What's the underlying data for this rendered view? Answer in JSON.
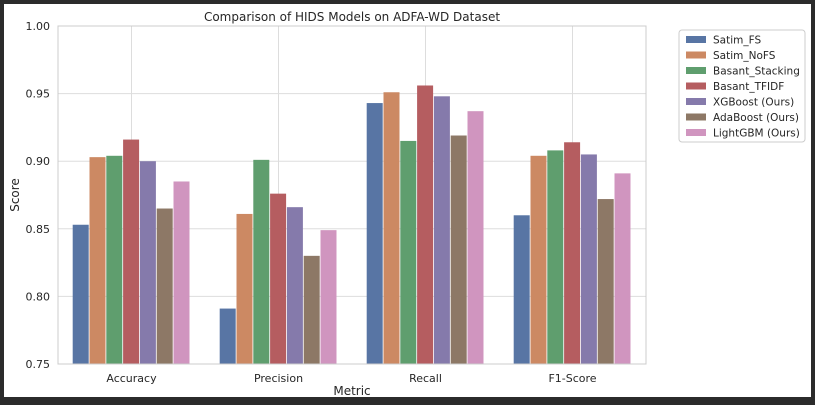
{
  "chart_data": {
    "type": "bar",
    "title": "Comparison of HIDS Models on ADFA-WD Dataset",
    "xlabel": "Metric",
    "ylabel": "Score",
    "ylim": [
      0.75,
      1.0
    ],
    "yticks": [
      "0.75",
      "0.80",
      "0.85",
      "0.90",
      "0.95",
      "1.00"
    ],
    "grid": true,
    "legend_position": "outside-right",
    "categories": [
      "Accuracy",
      "Precision",
      "Recall",
      "F1-Score"
    ],
    "series": [
      {
        "name": "Satim_FS",
        "color": "#5875a4",
        "values": [
          0.853,
          0.791,
          0.943,
          0.86
        ]
      },
      {
        "name": "Satim_NoFS",
        "color": "#cc8963",
        "values": [
          0.903,
          0.861,
          0.951,
          0.904
        ]
      },
      {
        "name": "Basant_Stacking",
        "color": "#5f9e6e",
        "values": [
          0.904,
          0.901,
          0.915,
          0.908
        ]
      },
      {
        "name": "Basant_TFIDF",
        "color": "#b55d60",
        "values": [
          0.916,
          0.876,
          0.956,
          0.914
        ]
      },
      {
        "name": "XGBoost (Ours)",
        "color": "#857aab",
        "values": [
          0.9,
          0.866,
          0.948,
          0.905
        ]
      },
      {
        "name": "AdaBoost (Ours)",
        "color": "#8d7866",
        "values": [
          0.865,
          0.83,
          0.919,
          0.872
        ]
      },
      {
        "name": "LightGBM (Ours)",
        "color": "#d095bf",
        "values": [
          0.885,
          0.849,
          0.937,
          0.891
        ]
      }
    ]
  }
}
